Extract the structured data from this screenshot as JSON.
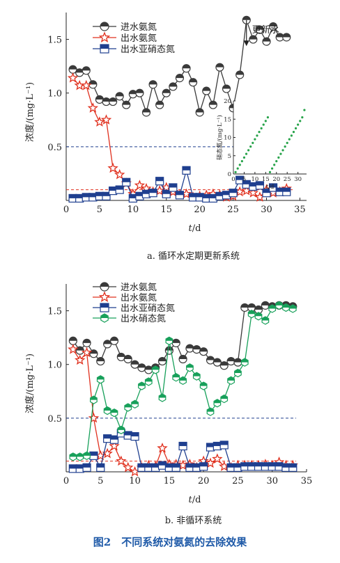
{
  "figure": {
    "caption": "图2　不同系统对氨氮的去除效果",
    "caption_color": "#1f5aa8"
  },
  "chart_data": [
    {
      "type": "line",
      "panel_label": "a. 循环水定期更新系统",
      "xlabel_italic": "t",
      "xlabel_unit": "/d",
      "ylabel": "浓度/(mg·L⁻¹)",
      "xlim": [
        0,
        36
      ],
      "ylim": [
        0,
        1.75
      ],
      "xticks": [
        0,
        5,
        10,
        15,
        20,
        25,
        30,
        35
      ],
      "yticks": [
        0.5,
        1.0,
        1.5
      ],
      "legend": "top-left",
      "grid": false,
      "hlines": [
        {
          "y": 0.5,
          "color": "#1f3f8f",
          "style": "dashed"
        },
        {
          "y": 0.1,
          "color": "#e0301e",
          "style": "dashed"
        }
      ],
      "annotation": {
        "text": "更新水",
        "x": 27,
        "y_from": 1.68,
        "y_to": 1.45
      },
      "series": [
        {
          "name": "进水氨氮",
          "marker": "circle-half",
          "color": "#3a3a3a",
          "x": [
            1,
            2,
            3,
            4,
            5,
            6,
            7,
            8,
            9,
            10,
            11,
            12,
            13,
            14,
            15,
            16,
            17,
            18,
            19,
            20,
            21,
            22,
            23,
            24,
            25,
            26,
            27,
            28,
            29,
            30,
            31,
            32,
            33
          ],
          "values": [
            1.22,
            1.19,
            1.21,
            1.08,
            0.94,
            0.92,
            0.92,
            0.97,
            0.89,
            0.99,
            1.0,
            0.82,
            1.08,
            0.89,
            1.0,
            1.06,
            1.14,
            1.23,
            1.1,
            0.82,
            1.02,
            0.89,
            1.24,
            1.04,
            0.86,
            1.17,
            1.68,
            1.5,
            1.59,
            1.48,
            1.62,
            1.52,
            1.52
          ]
        },
        {
          "name": "出水氨氮",
          "marker": "star",
          "color": "#e0301e",
          "x": [
            1,
            2,
            3,
            4,
            5,
            6,
            7,
            8,
            9,
            10,
            11,
            12,
            13,
            14,
            15,
            16,
            17,
            18,
            19,
            20,
            21,
            22,
            23,
            24,
            25,
            26,
            27,
            28,
            29,
            30,
            31,
            32,
            33
          ],
          "values": [
            1.14,
            1.07,
            1.07,
            0.86,
            0.73,
            0.75,
            0.3,
            0.24,
            0.16,
            0.06,
            0.14,
            0.11,
            0.08,
            0.09,
            0.12,
            0.08,
            0.05,
            0.06,
            0.03,
            0.04,
            0.05,
            0.06,
            0.05,
            0.03,
            0.04,
            0.08,
            0.09,
            0.07,
            0.03,
            0.1,
            0.07,
            0.08,
            0.11
          ]
        },
        {
          "name": "出水亚硝态氮",
          "marker": "square-half",
          "color": "#1f3f8f",
          "x": [
            1,
            2,
            3,
            4,
            5,
            6,
            7,
            8,
            9,
            10,
            11,
            12,
            13,
            14,
            15,
            16,
            17,
            18,
            19,
            20,
            21,
            22,
            23,
            24,
            25,
            26,
            27,
            28,
            29,
            30,
            31,
            32,
            33
          ],
          "values": [
            0.02,
            0.02,
            0.03,
            0.03,
            0.04,
            0.04,
            0.09,
            0.1,
            0.17,
            0.02,
            0.04,
            0.06,
            0.07,
            0.18,
            0.06,
            0.12,
            0.05,
            0.28,
            0.03,
            0.03,
            0.02,
            0.02,
            0.04,
            0.05,
            0.07,
            0.19,
            0.15,
            0.13,
            0.14,
            0.07,
            0.12,
            0.08,
            0.08
          ]
        }
      ],
      "inset": {
        "type": "scatter",
        "ylabel": "硝态氮/(mg·L⁻¹)",
        "xlabel_italic": "t",
        "xlabel_unit": "/d",
        "xlim": [
          0,
          34
        ],
        "ylim": [
          0,
          20
        ],
        "xticks": [
          0,
          5,
          10,
          15,
          20,
          25,
          30
        ],
        "yticks": [
          0,
          5,
          10,
          15,
          20
        ],
        "color": "#27a34a",
        "x": [
          1,
          2,
          3,
          4,
          5,
          6,
          7,
          8,
          9,
          10,
          11,
          12,
          13,
          14,
          15,
          16,
          17,
          18,
          19,
          20,
          21,
          22,
          23,
          24,
          25,
          26,
          27,
          28,
          29,
          30,
          31,
          32,
          33
        ],
        "values": [
          0.5,
          1.5,
          2.5,
          3.5,
          4.5,
          5.5,
          6.5,
          7.5,
          8.5,
          9.5,
          10.5,
          11.5,
          12.5,
          13.5,
          14.5,
          15.5,
          0.5,
          1.5,
          2.5,
          3.5,
          4.5,
          5.5,
          6.5,
          7.5,
          8.5,
          9.5,
          10.5,
          11.5,
          12.5,
          13.5,
          14.5,
          15.5,
          17.5
        ]
      }
    },
    {
      "type": "line",
      "panel_label": "b. 非循环系统",
      "xlabel_italic": "t",
      "xlabel_unit": "/d",
      "ylabel": "浓度/(mg·L⁻¹)",
      "xlim": [
        0,
        35
      ],
      "ylim": [
        0,
        1.75
      ],
      "xticks": [
        0,
        5,
        10,
        15,
        20,
        25,
        30,
        35
      ],
      "yticks": [
        0.5,
        1.0,
        1.5
      ],
      "legend": "top-left",
      "grid": false,
      "hlines": [
        {
          "y": 0.5,
          "color": "#1f3f8f",
          "style": "dashed"
        },
        {
          "y": 0.1,
          "color": "#e0301e",
          "style": "dashed"
        }
      ],
      "series": [
        {
          "name": "进水氨氮",
          "marker": "circle-half",
          "color": "#3a3a3a",
          "x": [
            1,
            2,
            3,
            4,
            5,
            6,
            7,
            8,
            9,
            10,
            11,
            12,
            13,
            14,
            15,
            16,
            17,
            18,
            19,
            20,
            21,
            22,
            23,
            24,
            25,
            26,
            27,
            28,
            29,
            30,
            31,
            32,
            33
          ],
          "values": [
            1.22,
            1.13,
            1.2,
            1.1,
            1.03,
            1.19,
            1.22,
            1.07,
            1.05,
            1.0,
            0.97,
            0.95,
            0.97,
            1.03,
            1.13,
            1.2,
            1.05,
            1.15,
            1.14,
            1.12,
            1.04,
            1.02,
            0.99,
            1.03,
            1.02,
            1.53,
            1.53,
            1.51,
            1.55,
            1.54,
            1.55,
            1.55,
            1.54
          ]
        },
        {
          "name": "出水氨氮",
          "marker": "star",
          "color": "#e0301e",
          "x": [
            1,
            2,
            3,
            4,
            5,
            6,
            7,
            8,
            9,
            10,
            11,
            12,
            13,
            14,
            15,
            16,
            17,
            18,
            19,
            20,
            21,
            22,
            23,
            24,
            25,
            26,
            27,
            28,
            29,
            30,
            31,
            32,
            33
          ],
          "values": [
            1.14,
            1.04,
            1.11,
            0.5,
            0.15,
            0.17,
            0.24,
            0.1,
            0.04,
            0.0,
            0.04,
            0.06,
            0.05,
            0.22,
            0.07,
            0.07,
            0.06,
            0.07,
            0.04,
            0.1,
            0.08,
            0.12,
            0.05,
            0.04,
            0.06,
            0.06,
            0.06,
            0.06,
            0.07,
            0.06,
            0.09,
            0.06,
            0.06
          ]
        },
        {
          "name": "出水亚硝态氮",
          "marker": "square-half",
          "color": "#1f3f8f",
          "x": [
            1,
            2,
            3,
            4,
            5,
            6,
            7,
            8,
            9,
            10,
            11,
            12,
            13,
            14,
            15,
            16,
            17,
            18,
            19,
            20,
            21,
            22,
            23,
            24,
            25,
            26,
            27,
            28,
            29,
            30,
            31,
            32,
            33
          ],
          "values": [
            0.03,
            0.03,
            0.04,
            0.15,
            0.04,
            0.31,
            0.3,
            0.36,
            0.34,
            0.33,
            0.04,
            0.04,
            0.04,
            0.06,
            0.04,
            0.04,
            0.24,
            0.04,
            0.04,
            0.05,
            0.23,
            0.24,
            0.25,
            0.04,
            0.04,
            0.05,
            0.05,
            0.05,
            0.05,
            0.05,
            0.05,
            0.04,
            0.04
          ]
        },
        {
          "name": "出水硝态氮",
          "marker": "hexagon-half",
          "color": "#17a05a",
          "x": [
            1,
            2,
            3,
            4,
            5,
            6,
            7,
            8,
            9,
            10,
            11,
            12,
            13,
            14,
            15,
            16,
            17,
            18,
            19,
            20,
            21,
            22,
            23,
            24,
            25,
            26,
            27,
            28,
            29,
            30,
            31,
            32,
            33
          ],
          "values": [
            0.14,
            0.14,
            0.15,
            0.67,
            0.86,
            0.57,
            0.55,
            0.39,
            0.6,
            0.63,
            0.8,
            0.84,
            0.95,
            0.69,
            1.22,
            0.88,
            0.85,
            0.97,
            0.89,
            0.8,
            0.56,
            0.64,
            0.68,
            0.85,
            0.92,
            1.02,
            1.47,
            1.45,
            1.41,
            1.52,
            1.55,
            1.53,
            1.52
          ]
        }
      ]
    }
  ]
}
